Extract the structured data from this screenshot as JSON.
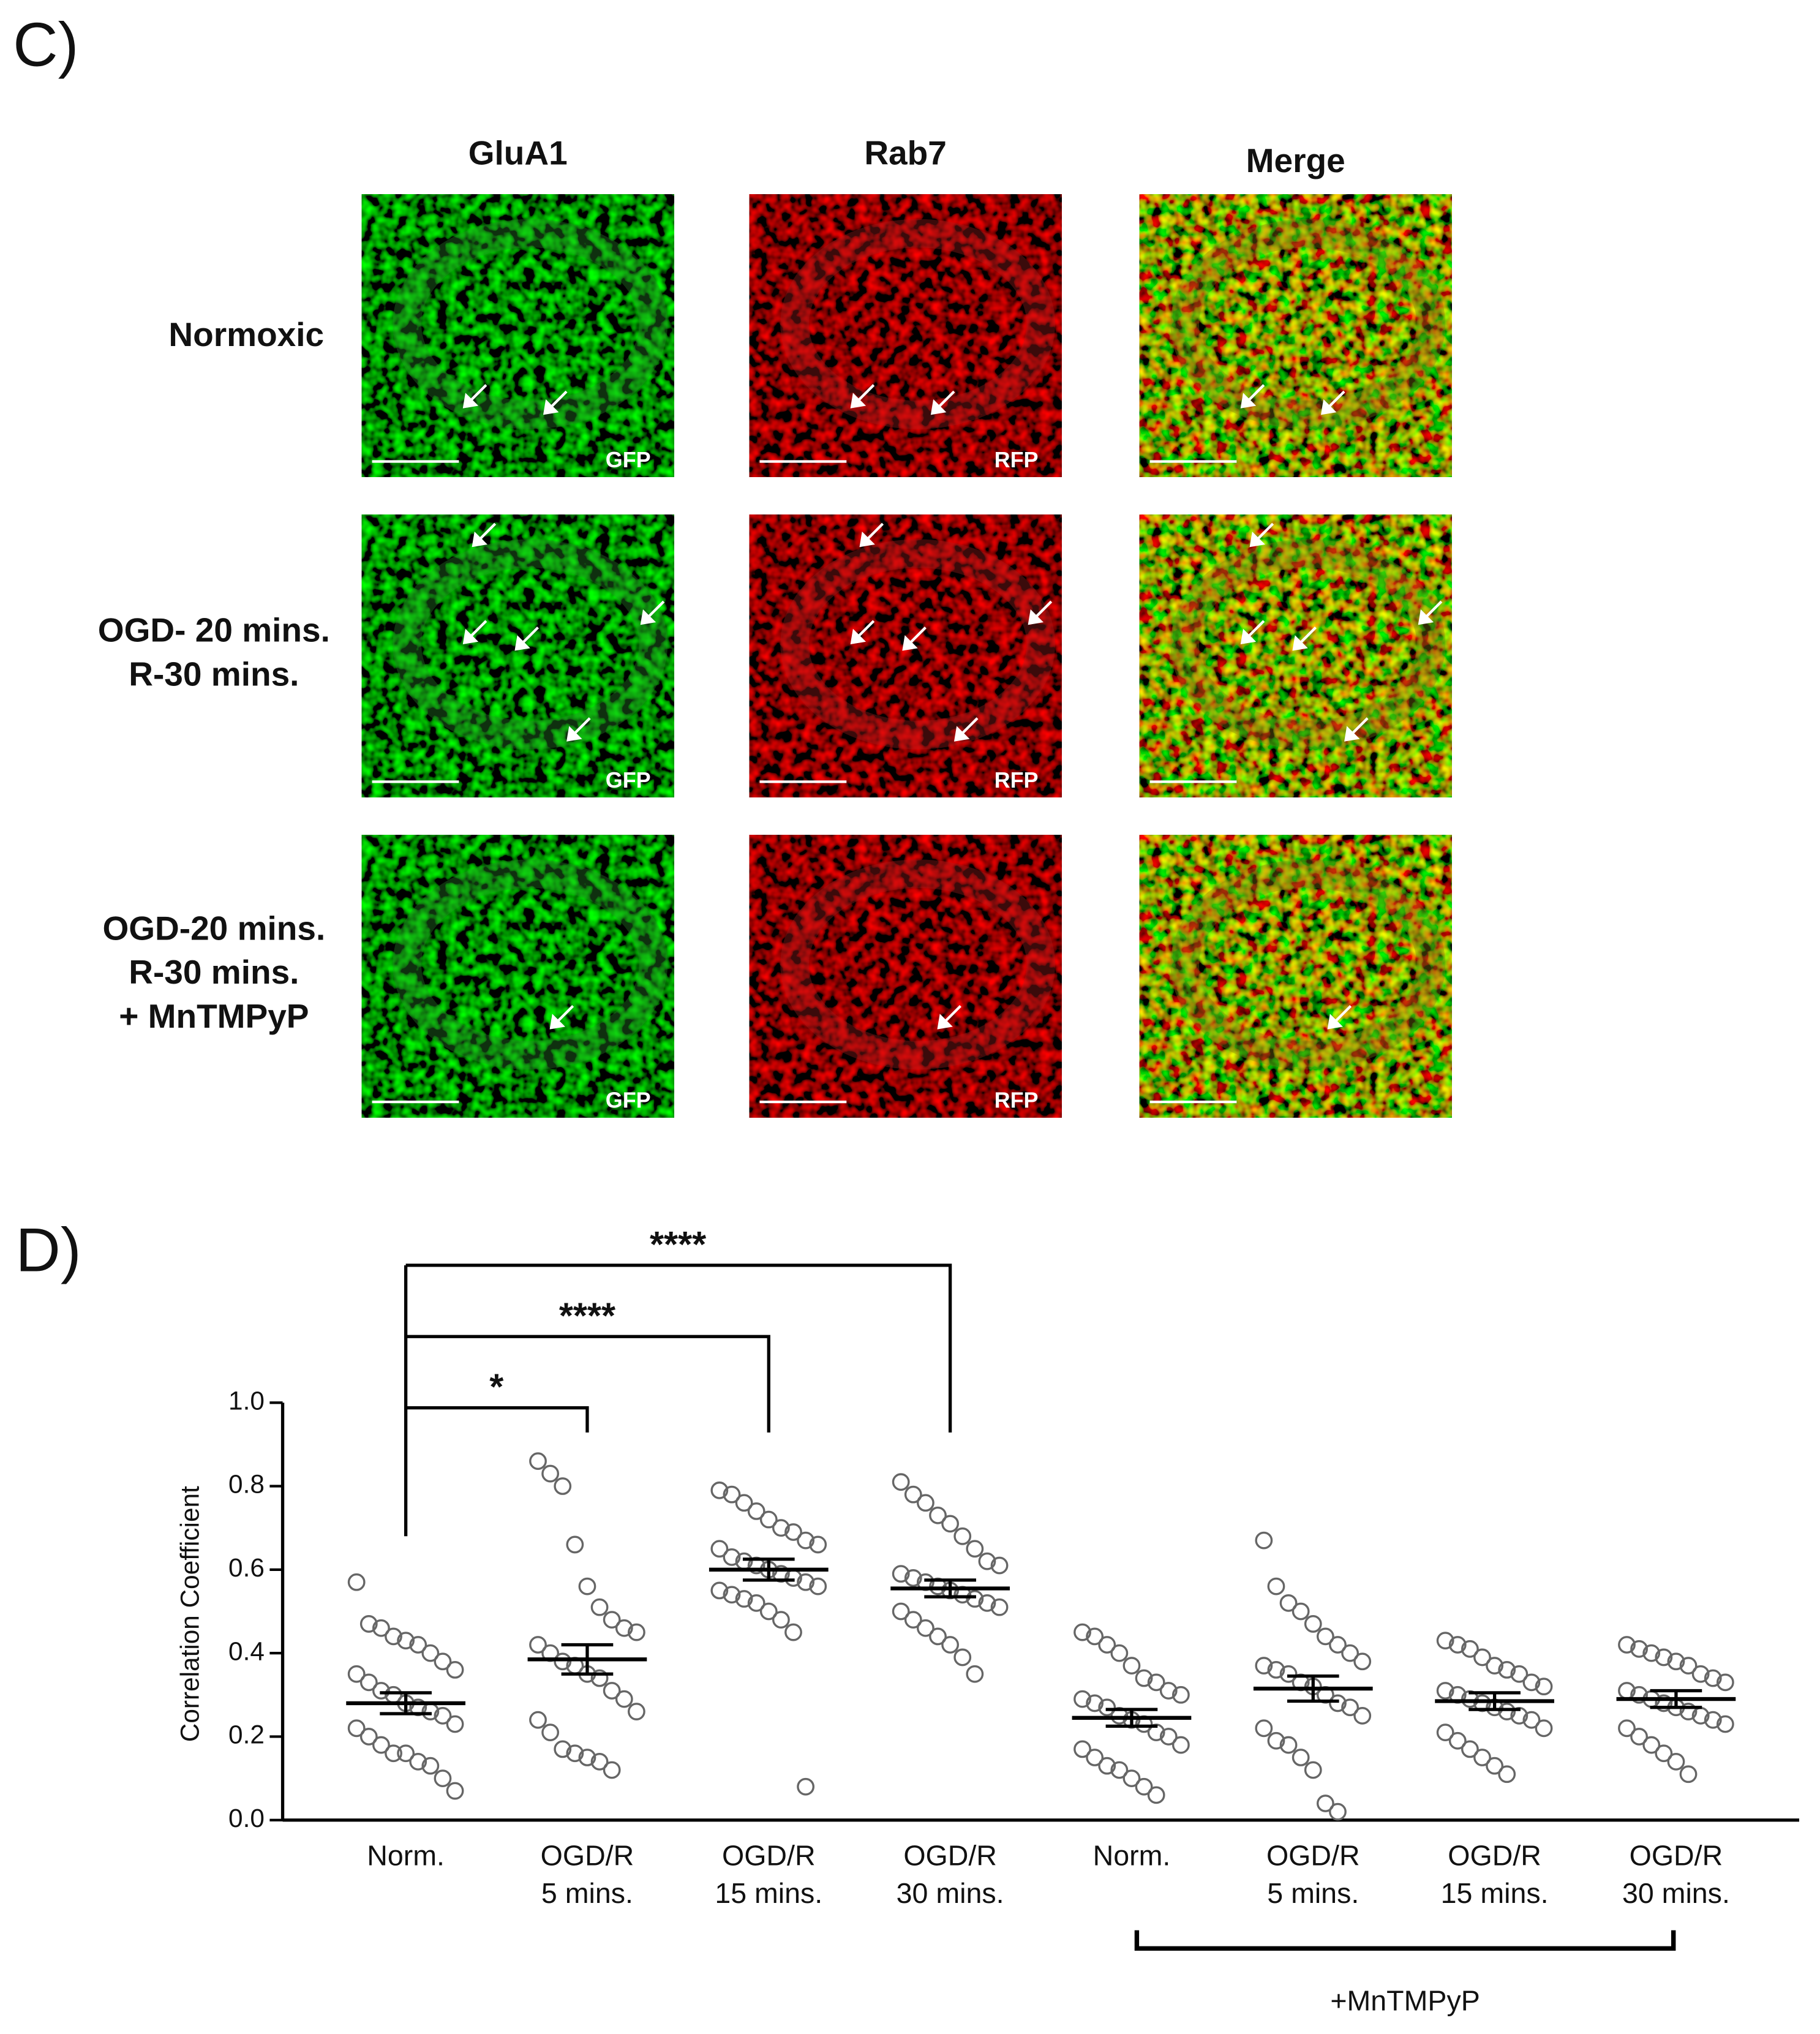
{
  "panel_c": {
    "label": "C)",
    "columns": [
      "GluA1",
      "Rab7",
      "Merge"
    ],
    "rows": [
      [
        "Normoxic"
      ],
      [
        "OGD- 20 mins.",
        "R-30 mins."
      ],
      [
        "OGD-20 mins.",
        "R-30 mins.",
        "+ MnTMPyP"
      ]
    ],
    "channel_labels": [
      "GFP",
      "RFP"
    ]
  },
  "chart_data": {
    "type": "dotplot",
    "panel_label": "D)",
    "ylabel": "Correlation Coefficient",
    "categories": [
      [
        "Norm."
      ],
      [
        "OGD/R",
        "5 mins."
      ],
      [
        "OGD/R",
        "15 mins."
      ],
      [
        "OGD/R",
        "30 mins."
      ],
      [
        "Norm."
      ],
      [
        "OGD/R",
        "5 mins."
      ],
      [
        "OGD/R",
        "15 mins."
      ],
      [
        "OGD/R",
        "30 mins."
      ]
    ],
    "groups": [
      {
        "mean": 0.28,
        "sem": 0.025,
        "values": [
          0.57,
          0.47,
          0.46,
          0.44,
          0.43,
          0.42,
          0.4,
          0.38,
          0.36,
          0.35,
          0.33,
          0.31,
          0.3,
          0.28,
          0.27,
          0.26,
          0.25,
          0.23,
          0.22,
          0.2,
          0.18,
          0.16,
          0.16,
          0.14,
          0.13,
          0.1,
          0.07
        ]
      },
      {
        "mean": 0.385,
        "sem": 0.035,
        "values": [
          0.86,
          0.83,
          0.8,
          0.66,
          0.56,
          0.51,
          0.48,
          0.46,
          0.45,
          0.42,
          0.4,
          0.38,
          0.37,
          0.35,
          0.34,
          0.31,
          0.29,
          0.26,
          0.24,
          0.21,
          0.17,
          0.16,
          0.15,
          0.14,
          0.12
        ]
      },
      {
        "mean": 0.6,
        "sem": 0.025,
        "values": [
          0.79,
          0.78,
          0.76,
          0.74,
          0.72,
          0.7,
          0.69,
          0.67,
          0.66,
          0.65,
          0.63,
          0.62,
          0.61,
          0.6,
          0.59,
          0.58,
          0.57,
          0.56,
          0.55,
          0.54,
          0.53,
          0.52,
          0.5,
          0.48,
          0.45,
          0.08
        ]
      },
      {
        "mean": 0.555,
        "sem": 0.02,
        "values": [
          0.81,
          0.78,
          0.76,
          0.73,
          0.71,
          0.68,
          0.65,
          0.62,
          0.61,
          0.59,
          0.58,
          0.57,
          0.56,
          0.55,
          0.54,
          0.53,
          0.52,
          0.51,
          0.5,
          0.48,
          0.46,
          0.44,
          0.42,
          0.39,
          0.35
        ]
      },
      {
        "mean": 0.245,
        "sem": 0.02,
        "values": [
          0.45,
          0.44,
          0.42,
          0.4,
          0.37,
          0.34,
          0.33,
          0.31,
          0.3,
          0.29,
          0.28,
          0.27,
          0.25,
          0.24,
          0.23,
          0.21,
          0.2,
          0.18,
          0.17,
          0.15,
          0.13,
          0.12,
          0.1,
          0.08,
          0.06
        ]
      },
      {
        "mean": 0.315,
        "sem": 0.03,
        "values": [
          0.67,
          0.56,
          0.52,
          0.5,
          0.47,
          0.44,
          0.42,
          0.4,
          0.38,
          0.37,
          0.36,
          0.35,
          0.33,
          0.32,
          0.3,
          0.28,
          0.27,
          0.25,
          0.22,
          0.19,
          0.18,
          0.15,
          0.12,
          0.04,
          0.02
        ]
      },
      {
        "mean": 0.285,
        "sem": 0.02,
        "values": [
          0.43,
          0.42,
          0.41,
          0.39,
          0.37,
          0.36,
          0.35,
          0.33,
          0.32,
          0.31,
          0.3,
          0.29,
          0.28,
          0.27,
          0.26,
          0.25,
          0.24,
          0.22,
          0.21,
          0.19,
          0.17,
          0.15,
          0.13,
          0.11
        ]
      },
      {
        "mean": 0.29,
        "sem": 0.02,
        "values": [
          0.42,
          0.41,
          0.4,
          0.39,
          0.38,
          0.37,
          0.35,
          0.34,
          0.33,
          0.31,
          0.3,
          0.29,
          0.28,
          0.27,
          0.26,
          0.25,
          0.24,
          0.23,
          0.22,
          0.2,
          0.18,
          0.16,
          0.14,
          0.11
        ]
      }
    ],
    "ylim": [
      0,
      1
    ],
    "yticks": [
      {
        "value": 0,
        "label": "0.0"
      },
      0.2,
      0.4,
      0.6,
      0.8,
      {
        "value": 1,
        "label": "1.0"
      }
    ],
    "comparisons": [
      {
        "text": "*",
        "from": 0,
        "to": 1
      },
      {
        "text": "****",
        "from": 0,
        "to": 2
      },
      {
        "text": "****",
        "from": 0,
        "to": 3
      }
    ],
    "group_label": {
      "text": "+MnTMPyP",
      "from": 4,
      "to": 7
    }
  }
}
